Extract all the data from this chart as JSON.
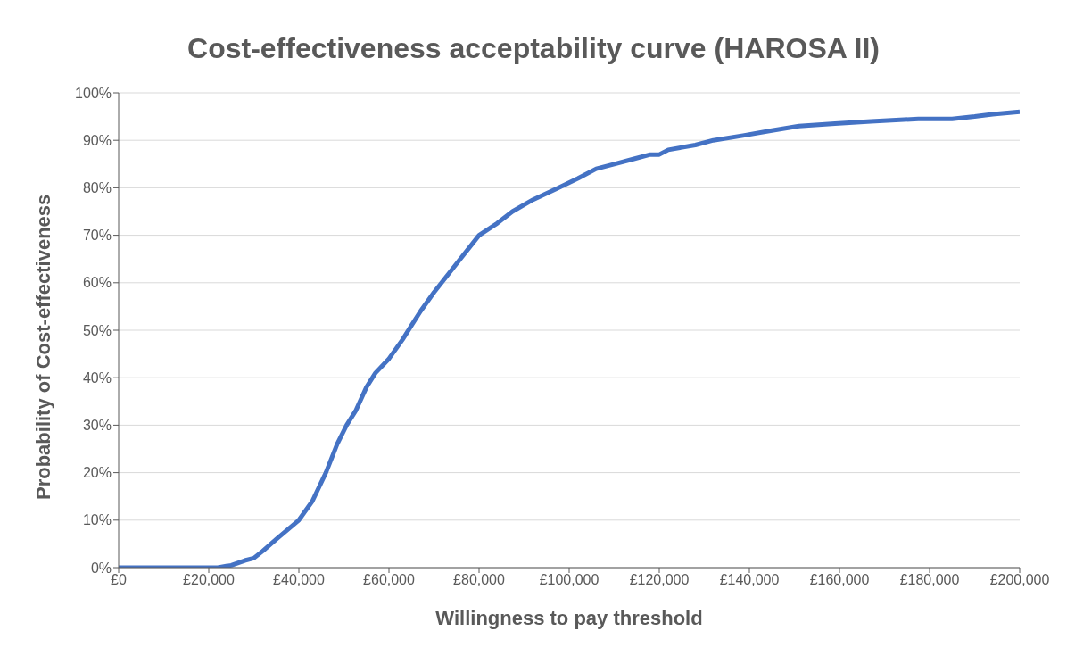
{
  "chart_data": {
    "type": "line",
    "title": "Cost-effectiveness acceptability curve (HAROSA II)",
    "xlabel": "Willingness to pay threshold",
    "ylabel": "Probability of Cost-effectiveness",
    "x": [
      0,
      10000,
      20000,
      22000,
      25000,
      28000,
      30000,
      32000,
      35000,
      40000,
      43000,
      46000,
      48500,
      50600,
      52600,
      55000,
      57000,
      60000,
      63000,
      65000,
      67000,
      70000,
      75000,
      80000,
      84000,
      87400,
      92000,
      97600,
      102000,
      106000,
      110000,
      114000,
      118000,
      120000,
      122000,
      128000,
      132000,
      138600,
      144700,
      151000,
      159000,
      167000,
      177500,
      185000,
      190000,
      194000,
      200000
    ],
    "series": [
      {
        "color": "#4472c4",
        "values": [
          0,
          0,
          0,
          0,
          0.5,
          1.5,
          2,
          3.5,
          6,
          10,
          14,
          20,
          26,
          30,
          33,
          38,
          41,
          44,
          48,
          51,
          54,
          58,
          64,
          70,
          72.5,
          75,
          77.5,
          80,
          82,
          84,
          85,
          86,
          87,
          87,
          88,
          89,
          90,
          91,
          92,
          93,
          93.5,
          94,
          94.5,
          94.5,
          95,
          95.5,
          96
        ]
      }
    ],
    "xlim": [
      0,
      200000
    ],
    "xticks": [
      {
        "value": 0,
        "label": "£0"
      },
      {
        "value": 20000,
        "label": "£20,000"
      },
      {
        "value": 40000,
        "label": "£40,000"
      },
      {
        "value": 60000,
        "label": "£60,000"
      },
      {
        "value": 80000,
        "label": "£80,000"
      },
      {
        "value": 100000,
        "label": "£100,000"
      },
      {
        "value": 120000,
        "label": "£120,000"
      },
      {
        "value": 140000,
        "label": "£140,000"
      },
      {
        "value": 160000,
        "label": "£160,000"
      },
      {
        "value": 180000,
        "label": "£180,000"
      },
      {
        "value": 200000,
        "label": "£200,000"
      }
    ],
    "ylim": [
      0,
      100
    ],
    "yticks": [
      {
        "value": 0,
        "label": "0%"
      },
      {
        "value": 10,
        "label": "10%"
      },
      {
        "value": 20,
        "label": "20%"
      },
      {
        "value": 30,
        "label": "30%"
      },
      {
        "value": 40,
        "label": "40%"
      },
      {
        "value": 50,
        "label": "50%"
      },
      {
        "value": 60,
        "label": "60%"
      },
      {
        "value": 70,
        "label": "70%"
      },
      {
        "value": 80,
        "label": "80%"
      },
      {
        "value": 90,
        "label": "90%"
      },
      {
        "value": 100,
        "label": "100%"
      }
    ],
    "grid": "y",
    "marker": "none",
    "line_style": "solid",
    "legend": false
  }
}
